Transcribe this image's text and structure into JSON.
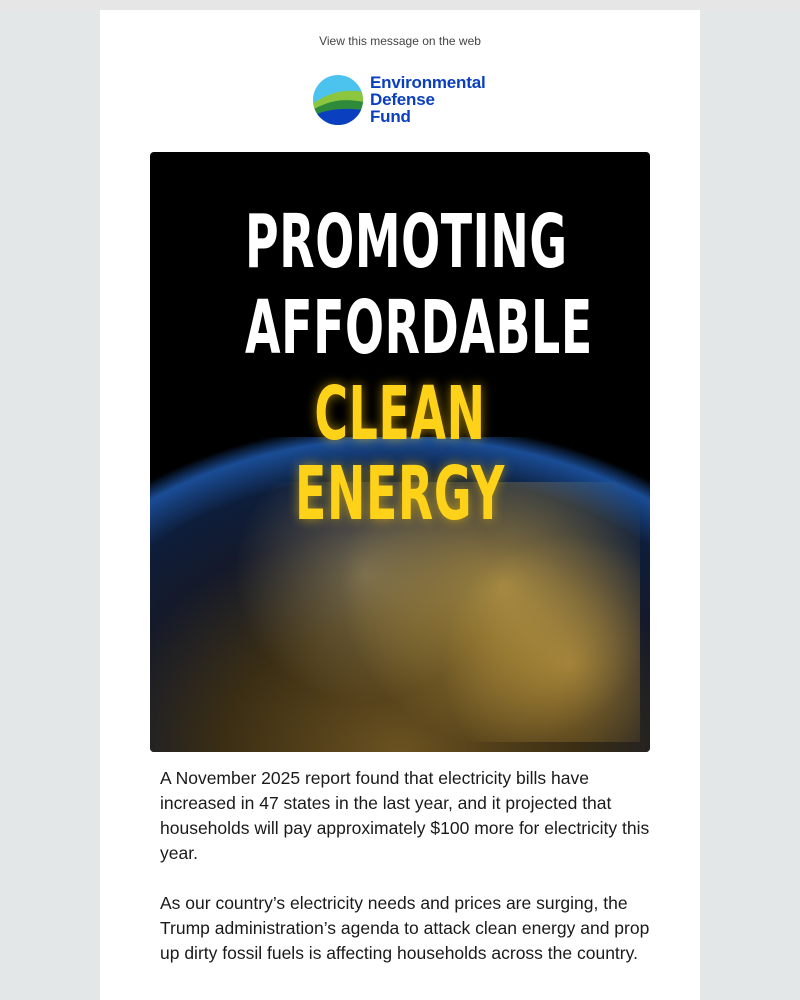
{
  "header": {
    "view_web_link": "View this message on the web"
  },
  "logo": {
    "line1": "Environmental",
    "line2": "Defense",
    "line3": "Fund",
    "brand_color": "#0a3fbf"
  },
  "hero": {
    "line1": "PROMOTING",
    "line2": "AFFORDABLE",
    "line3": "CLEAN ENERGY",
    "accent_color": "#ffd21a"
  },
  "body": {
    "paragraphs": [
      "A November 2025 report found that electricity bills have increased in 47 states in the last year, and it projected that households will pay approximately $100 more for electricity this year.",
      "As our country’s electricity needs and prices are surging, the Trump administration’s agenda to attack clean energy and prop up dirty fossil fuels is affecting households across the country."
    ]
  }
}
